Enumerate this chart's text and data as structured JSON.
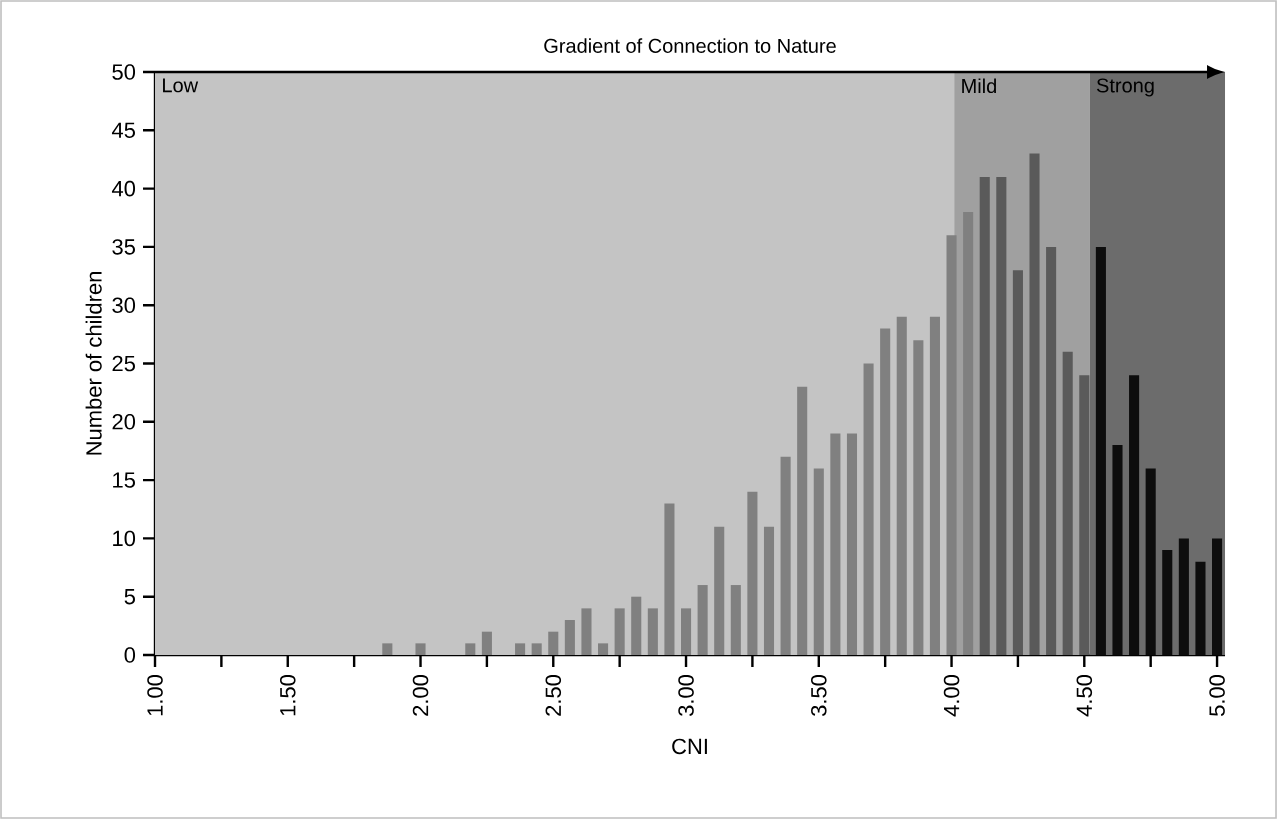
{
  "chart_data": {
    "type": "bar",
    "title": "Gradient of Connection to Nature",
    "xlabel": "CNI",
    "ylabel": "Number of children",
    "x": [
      1.875,
      2.0,
      2.1875,
      2.25,
      2.375,
      2.4375,
      2.5,
      2.5625,
      2.625,
      2.6875,
      2.75,
      2.8125,
      2.875,
      2.9375,
      3.0,
      3.0625,
      3.125,
      3.1875,
      3.25,
      3.3125,
      3.375,
      3.4375,
      3.5,
      3.5625,
      3.625,
      3.6875,
      3.75,
      3.8125,
      3.875,
      3.9375,
      4.0,
      4.0625,
      4.125,
      4.1875,
      4.25,
      4.3125,
      4.375,
      4.4375,
      4.5,
      4.5625,
      4.625,
      4.6875,
      4.75,
      4.8125,
      4.875,
      4.9375,
      5.0
    ],
    "values": [
      1,
      1,
      1,
      2,
      1,
      1,
      2,
      3,
      4,
      1,
      4,
      5,
      4,
      13,
      4,
      6,
      11,
      6,
      14,
      11,
      17,
      23,
      16,
      19,
      19,
      25,
      28,
      29,
      27,
      29,
      36,
      38,
      41,
      41,
      33,
      43,
      35,
      26,
      24,
      35,
      18,
      24,
      16,
      9,
      10,
      8,
      10
    ],
    "colors": [
      "#808080",
      "#808080",
      "#808080",
      "#808080",
      "#808080",
      "#808080",
      "#808080",
      "#808080",
      "#808080",
      "#808080",
      "#808080",
      "#808080",
      "#808080",
      "#808080",
      "#808080",
      "#808080",
      "#808080",
      "#808080",
      "#808080",
      "#808080",
      "#808080",
      "#808080",
      "#808080",
      "#808080",
      "#808080",
      "#808080",
      "#808080",
      "#808080",
      "#808080",
      "#808080",
      "#808080",
      "#808080",
      "#5a5a5a",
      "#5a5a5a",
      "#5a5a5a",
      "#5a5a5a",
      "#5a5a5a",
      "#5a5a5a",
      "#5a5a5a",
      "#0d0d0d",
      "#0d0d0d",
      "#0d0d0d",
      "#0d0d0d",
      "#0d0d0d",
      "#0d0d0d",
      "#0d0d0d",
      "#0d0d0d"
    ],
    "xlim": [
      1.0,
      5.03
    ],
    "ylim": [
      0,
      50
    ],
    "xticks": [
      {
        "value": 1.0,
        "label": "1.00"
      },
      {
        "value": 1.25,
        "label": null
      },
      {
        "value": 1.5,
        "label": "1.50"
      },
      {
        "value": 1.75,
        "label": null
      },
      {
        "value": 2.0,
        "label": "2.00"
      },
      {
        "value": 2.25,
        "label": null
      },
      {
        "value": 2.5,
        "label": "2.50"
      },
      {
        "value": 2.75,
        "label": null
      },
      {
        "value": 3.0,
        "label": "3.00"
      },
      {
        "value": 3.25,
        "label": null
      },
      {
        "value": 3.5,
        "label": "3.50"
      },
      {
        "value": 3.75,
        "label": null
      },
      {
        "value": 4.0,
        "label": "4.00"
      },
      {
        "value": 4.25,
        "label": null
      },
      {
        "value": 4.5,
        "label": "4.50"
      },
      {
        "value": 4.75,
        "label": null
      },
      {
        "value": 5.0,
        "label": "5.00"
      }
    ],
    "yticks": [
      0,
      5,
      10,
      15,
      20,
      25,
      30,
      35,
      40,
      45,
      50
    ],
    "bands": [
      {
        "axis": "x",
        "from": 1.0,
        "to": 4.01,
        "label": "Low",
        "color": "#c4c4c4"
      },
      {
        "axis": "x",
        "from": 4.01,
        "to": 4.52,
        "label": "Mild",
        "color": "#a0a0a0"
      },
      {
        "axis": "x",
        "from": 4.52,
        "to": 5.03,
        "label": "Strong",
        "color": "#6c6c6c"
      }
    ],
    "grid": false
  }
}
